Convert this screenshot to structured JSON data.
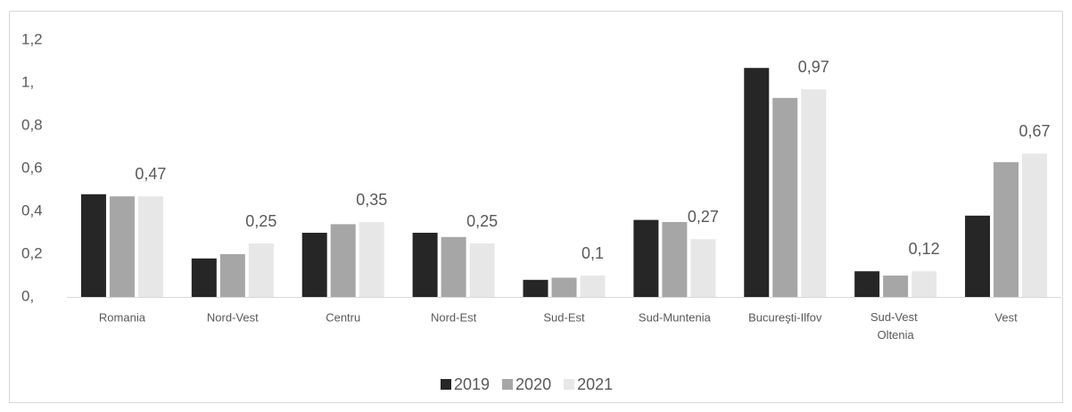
{
  "chart_data": {
    "type": "bar",
    "categories": [
      "Romania",
      "Nord-Vest",
      "Centru",
      "Nord-Est",
      "Sud-Est",
      "Sud-Muntenia",
      "Bucureşti-Ilfov",
      "Sud-Vest Oltenia",
      "Vest"
    ],
    "series": [
      {
        "name": "2019",
        "color": "#262626",
        "values": [
          0.48,
          0.18,
          0.3,
          0.3,
          0.08,
          0.36,
          1.07,
          0.12,
          0.38
        ]
      },
      {
        "name": "2020",
        "color": "#a6a6a6",
        "values": [
          0.47,
          0.2,
          0.34,
          0.28,
          0.09,
          0.35,
          0.93,
          0.1,
          0.63
        ]
      },
      {
        "name": "2021",
        "color": "#e7e7e7",
        "values": [
          0.47,
          0.25,
          0.35,
          0.25,
          0.1,
          0.27,
          0.97,
          0.12,
          0.67
        ],
        "value_labels": [
          "0,47",
          "0,25",
          "0,35",
          "0,25",
          "0,1",
          "0,27",
          "0,97",
          "0,12",
          "0,67"
        ]
      }
    ],
    "ylim": [
      0,
      1.2
    ],
    "yticks": [
      {
        "value": 0,
        "label": "0,"
      },
      {
        "value": 0.2,
        "label": "0,2"
      },
      {
        "value": 0.4,
        "label": "0,4"
      },
      {
        "value": 0.6,
        "label": "0,6"
      },
      {
        "value": 0.8,
        "label": "0,8"
      },
      {
        "value": 1,
        "label": "1,"
      },
      {
        "value": 1.2,
        "label": "1,2"
      }
    ],
    "grid": false,
    "legend": "bottom"
  }
}
